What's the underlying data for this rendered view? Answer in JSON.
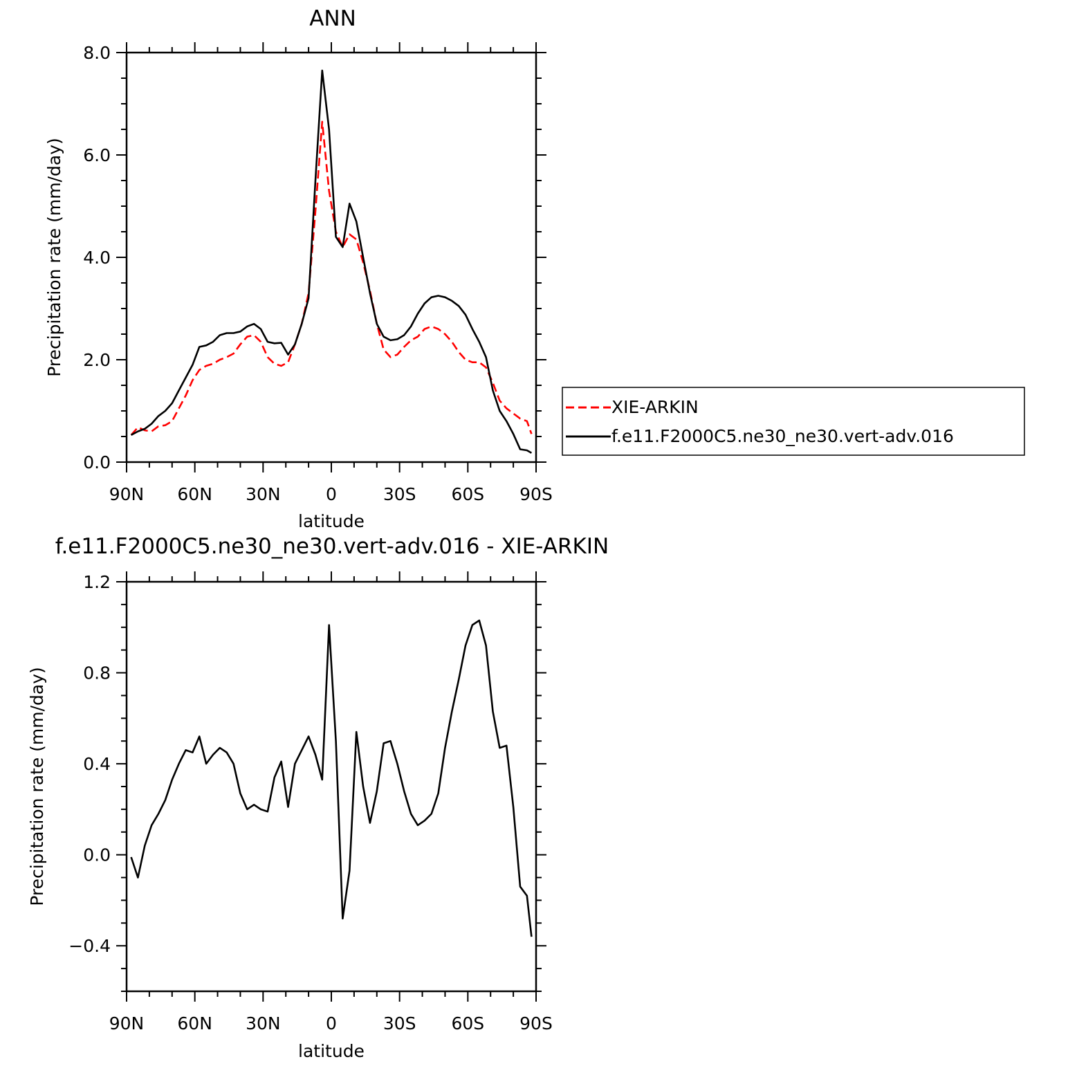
{
  "chart_data": [
    {
      "type": "line",
      "title": "ANN",
      "xlabel": "latitude",
      "ylabel": "Precipitation rate (mm/day)",
      "ylim": [
        0,
        8
      ],
      "yticks": [
        "0.0",
        "2.0",
        "4.0",
        "6.0",
        "8.0"
      ],
      "xlim": [
        90,
        -90
      ],
      "xticks": [
        {
          "value": 90,
          "label": "90N"
        },
        {
          "value": 60,
          "label": "60N"
        },
        {
          "value": 30,
          "label": "30N"
        },
        {
          "value": 0,
          "label": "0"
        },
        {
          "value": -30,
          "label": "30S"
        },
        {
          "value": -60,
          "label": "60S"
        },
        {
          "value": -90,
          "label": "90S"
        }
      ],
      "legend_position": "right",
      "series": [
        {
          "name": "XIE-ARKIN",
          "color": "#ff0000",
          "style": "dashed",
          "x": [
            88,
            85,
            82,
            79,
            76,
            73,
            70,
            67,
            64,
            61,
            58,
            55,
            52,
            49,
            46,
            43,
            40,
            37,
            34,
            31,
            28,
            25,
            22,
            19,
            16,
            13,
            10,
            7,
            4,
            1,
            -2,
            -5,
            -8,
            -11,
            -14,
            -17,
            -20,
            -23,
            -26,
            -29,
            -32,
            -35,
            -38,
            -41,
            -44,
            -47,
            -50,
            -53,
            -56,
            -59,
            -62,
            -65,
            -68,
            -71,
            -74,
            -77,
            -80,
            -83,
            -86,
            -88
          ],
          "y": [
            0.53,
            0.68,
            0.62,
            0.6,
            0.7,
            0.72,
            0.8,
            1.05,
            1.3,
            1.6,
            1.8,
            1.88,
            1.92,
            2.0,
            2.05,
            2.12,
            2.3,
            2.45,
            2.48,
            2.35,
            2.05,
            1.92,
            1.88,
            1.95,
            2.3,
            2.7,
            3.3,
            4.9,
            6.65,
            5.3,
            4.5,
            4.2,
            4.45,
            4.35,
            3.9,
            3.35,
            2.7,
            2.2,
            2.05,
            2.1,
            2.25,
            2.38,
            2.45,
            2.6,
            2.65,
            2.6,
            2.5,
            2.35,
            2.15,
            2.0,
            1.95,
            1.95,
            1.85,
            1.55,
            1.2,
            1.05,
            0.95,
            0.85,
            0.8,
            0.55
          ]
        },
        {
          "name": "f.e11.F2000C5.ne30_ne30.vert-adv.016",
          "color": "#000000",
          "style": "solid",
          "x": [
            88,
            85,
            82,
            79,
            76,
            73,
            70,
            67,
            64,
            61,
            58,
            55,
            52,
            49,
            46,
            43,
            40,
            37,
            34,
            31,
            28,
            25,
            22,
            19,
            16,
            13,
            10,
            7,
            4,
            1,
            -2,
            -5,
            -8,
            -11,
            -14,
            -17,
            -20,
            -23,
            -26,
            -29,
            -32,
            -35,
            -38,
            -41,
            -44,
            -47,
            -50,
            -53,
            -56,
            -59,
            -62,
            -65,
            -68,
            -71,
            -74,
            -77,
            -80,
            -83,
            -86,
            -88
          ],
          "y": [
            0.53,
            0.6,
            0.65,
            0.75,
            0.9,
            1.0,
            1.15,
            1.4,
            1.65,
            1.9,
            2.25,
            2.28,
            2.35,
            2.48,
            2.52,
            2.52,
            2.55,
            2.65,
            2.7,
            2.6,
            2.35,
            2.32,
            2.33,
            2.1,
            2.3,
            2.7,
            3.2,
            5.5,
            7.65,
            6.5,
            4.4,
            4.2,
            5.05,
            4.7,
            4.0,
            3.3,
            2.7,
            2.45,
            2.38,
            2.4,
            2.48,
            2.65,
            2.9,
            3.1,
            3.22,
            3.25,
            3.22,
            3.15,
            3.05,
            2.88,
            2.6,
            2.35,
            2.05,
            1.4,
            1.0,
            0.8,
            0.55,
            0.25,
            0.23,
            0.18
          ]
        }
      ]
    },
    {
      "type": "line",
      "title": "f.e11.F2000C5.ne30_ne30.vert-adv.016 - XIE-ARKIN",
      "xlabel": "latitude",
      "ylabel": "Precipitation rate (mm/day)",
      "ylim": [
        -0.6,
        1.2
      ],
      "yticks": [
        "-0.4",
        "0.0",
        "0.4",
        "0.8",
        "1.2"
      ],
      "xlim": [
        90,
        -90
      ],
      "xticks": [
        {
          "value": 90,
          "label": "90N"
        },
        {
          "value": 60,
          "label": "60N"
        },
        {
          "value": 30,
          "label": "30N"
        },
        {
          "value": 0,
          "label": "0"
        },
        {
          "value": -30,
          "label": "30S"
        },
        {
          "value": -60,
          "label": "60S"
        },
        {
          "value": -90,
          "label": "90S"
        }
      ],
      "series": [
        {
          "color": "#000000",
          "style": "solid",
          "x": [
            88,
            85,
            82,
            79,
            76,
            73,
            70,
            67,
            64,
            61,
            58,
            55,
            52,
            49,
            46,
            43,
            40,
            37,
            34,
            31,
            28,
            25,
            22,
            19,
            16,
            13,
            10,
            7,
            4,
            1,
            -2,
            -5,
            -8,
            -11,
            -14,
            -17,
            -20,
            -23,
            -26,
            -29,
            -32,
            -35,
            -38,
            -41,
            -44,
            -47,
            -50,
            -53,
            -56,
            -59,
            -62,
            -65,
            -68,
            -71,
            -74,
            -77,
            -80,
            -83,
            -86,
            -88
          ],
          "y": [
            -0.01,
            -0.1,
            0.04,
            0.13,
            0.18,
            0.24,
            0.33,
            0.4,
            0.46,
            0.45,
            0.52,
            0.4,
            0.44,
            0.47,
            0.45,
            0.4,
            0.27,
            0.2,
            0.22,
            0.2,
            0.19,
            0.34,
            0.41,
            0.21,
            0.4,
            0.46,
            0.52,
            0.44,
            0.33,
            1.01,
            0.5,
            -0.28,
            -0.07,
            0.54,
            0.3,
            0.14,
            0.28,
            0.49,
            0.5,
            0.4,
            0.28,
            0.18,
            0.13,
            0.15,
            0.18,
            0.27,
            0.47,
            0.63,
            0.77,
            0.92,
            1.01,
            1.03,
            0.92,
            0.63,
            0.47,
            0.48,
            0.21,
            -0.14,
            -0.18,
            -0.36
          ]
        }
      ]
    }
  ]
}
